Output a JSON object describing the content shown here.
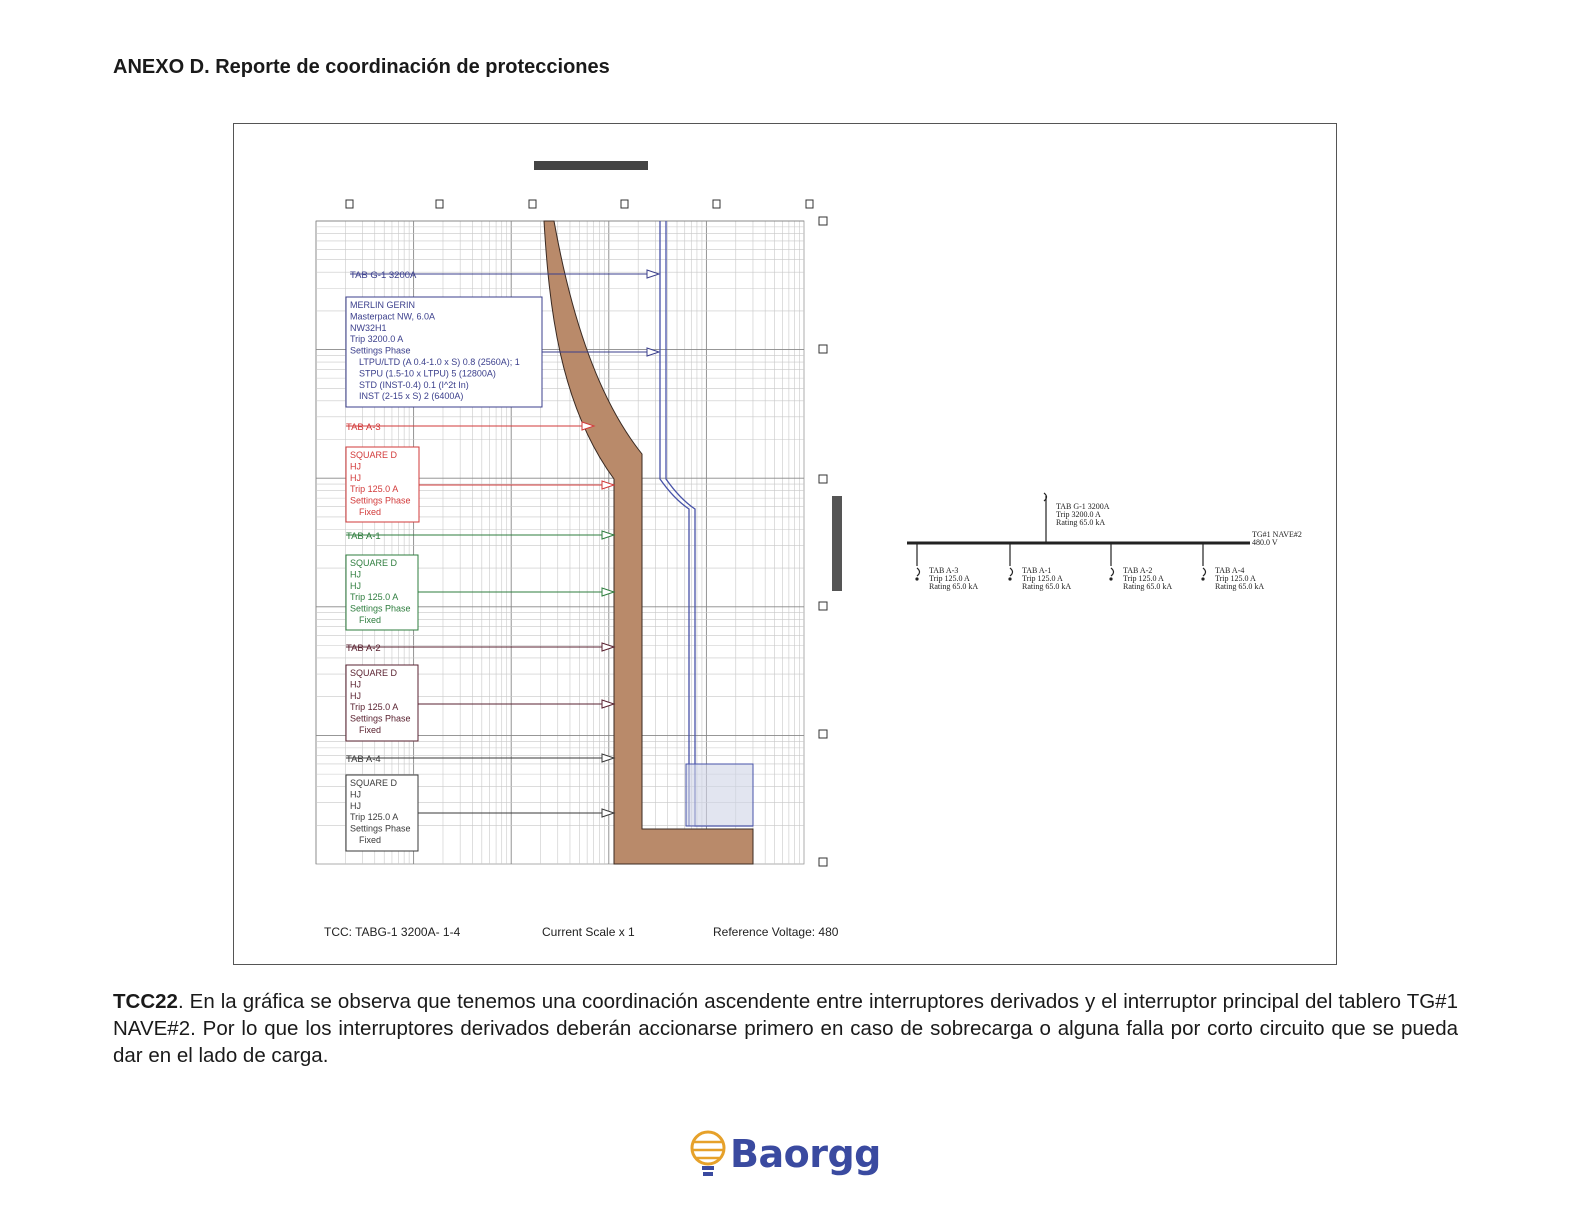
{
  "heading": "ANEXO D. Reporte de coordinación de protecciones",
  "tcc": {
    "breakers": [
      {
        "label": "TAB G-1 3200A",
        "color": "#3b3f8c",
        "info": [
          "MERLIN GERIN",
          "Masterpact NW, 6.0A",
          "NW32H1",
          "Trip 3200.0 A",
          "Settings Phase",
          "LTPU/LTD (A 0.4-1.0 x S) 0.8 (2560A); 1",
          "STPU (1.5-10 x LTPU) 5 (12800A)",
          "STD (INST-0.4) 0.1 (I^2t In)",
          "INST (2-15 x S) 2 (6400A)"
        ]
      },
      {
        "label": "TAB A-3",
        "color": "#d23a3a",
        "info": [
          "SQUARE D",
          "HJ",
          "HJ",
          "Trip 125.0 A",
          "Settings Phase",
          "Fixed"
        ]
      },
      {
        "label": "TAB A-1",
        "color": "#2e7d3e",
        "info": [
          "SQUARE D",
          "HJ",
          "HJ",
          "Trip 125.0 A",
          "Settings Phase",
          "Fixed"
        ]
      },
      {
        "label": "TAB A-2",
        "color": "#5a2230",
        "info": [
          "SQUARE D",
          "HJ",
          "HJ",
          "Trip 125.0 A",
          "Settings Phase",
          "Fixed"
        ]
      },
      {
        "label": "TAB A-4",
        "color": "#3a3a3a",
        "info": [
          "SQUARE D",
          "HJ",
          "HJ",
          "Trip 125.0 A",
          "Settings Phase",
          "Fixed"
        ]
      }
    ],
    "footer": {
      "tcc_name": "TCC:  TABG-1 3200A- 1-4",
      "current_scale": "Current Scale  x 1",
      "reference_voltage": "Reference Voltage: 480"
    }
  },
  "one_line": {
    "bus": [
      "TG#1 NAVE#2",
      "480.0 V"
    ],
    "main": [
      "TAB G-1 3200A",
      "Trip 3200.0 A",
      "Rating 65.0 kA"
    ],
    "feeders": [
      [
        "TAB A-3",
        "Trip 125.0 A",
        "Rating 65.0 kA"
      ],
      [
        "TAB A-1",
        "Trip 125.0 A",
        "Rating 65.0 kA"
      ],
      [
        "TAB A-2",
        "Trip 125.0 A",
        "Rating 65.0 kA"
      ],
      [
        "TAB A-4",
        "Trip 125.0 A",
        "Rating 65.0 kA"
      ]
    ]
  },
  "caption": {
    "bold": "TCC22",
    "text": ". En la gráfica se observa que tenemos una coordinación ascendente entre interruptores derivados y el interruptor principal del tablero TG#1 NAVE#2. Por lo que los interruptores derivados deberán accionarse primero en caso de sobrecarga o alguna falla por corto circuito que se pueda dar en el lado de carga."
  },
  "logo": {
    "text": "Baorgg",
    "icon": "bulb-globe-icon",
    "colors": {
      "brand": "#3a4aa0",
      "accent": "#e6a12a"
    }
  }
}
